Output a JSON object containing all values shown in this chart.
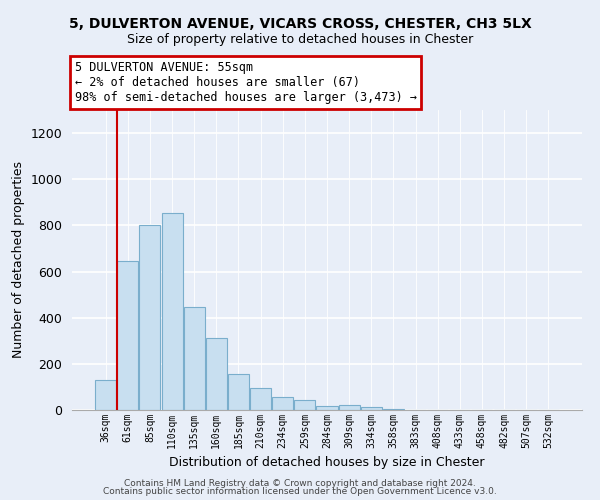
{
  "title_line1": "5, DULVERTON AVENUE, VICARS CROSS, CHESTER, CH3 5LX",
  "title_line2": "Size of property relative to detached houses in Chester",
  "xlabel": "Distribution of detached houses by size in Chester",
  "ylabel": "Number of detached properties",
  "bar_labels": [
    "36sqm",
    "61sqm",
    "85sqm",
    "110sqm",
    "135sqm",
    "160sqm",
    "185sqm",
    "210sqm",
    "234sqm",
    "259sqm",
    "284sqm",
    "309sqm",
    "334sqm",
    "358sqm",
    "383sqm",
    "408sqm",
    "433sqm",
    "458sqm",
    "482sqm",
    "507sqm",
    "532sqm"
  ],
  "bar_values": [
    130,
    645,
    800,
    855,
    445,
    310,
    158,
    95,
    55,
    42,
    18,
    22,
    12,
    5,
    2,
    0,
    0,
    0,
    0,
    0,
    2
  ],
  "bar_color": "#c8dff0",
  "bar_edge_color": "#7aaecc",
  "highlight_line_color": "#cc0000",
  "annotation_title": "5 DULVERTON AVENUE: 55sqm",
  "annotation_line1": "← 2% of detached houses are smaller (67)",
  "annotation_line2": "98% of semi-detached houses are larger (3,473) →",
  "annotation_box_color": "#cc0000",
  "ylim": [
    0,
    1300
  ],
  "yticks": [
    0,
    200,
    400,
    600,
    800,
    1000,
    1200
  ],
  "footer_line1": "Contains HM Land Registry data © Crown copyright and database right 2024.",
  "footer_line2": "Contains public sector information licensed under the Open Government Licence v3.0.",
  "background_color": "#e8eef8"
}
